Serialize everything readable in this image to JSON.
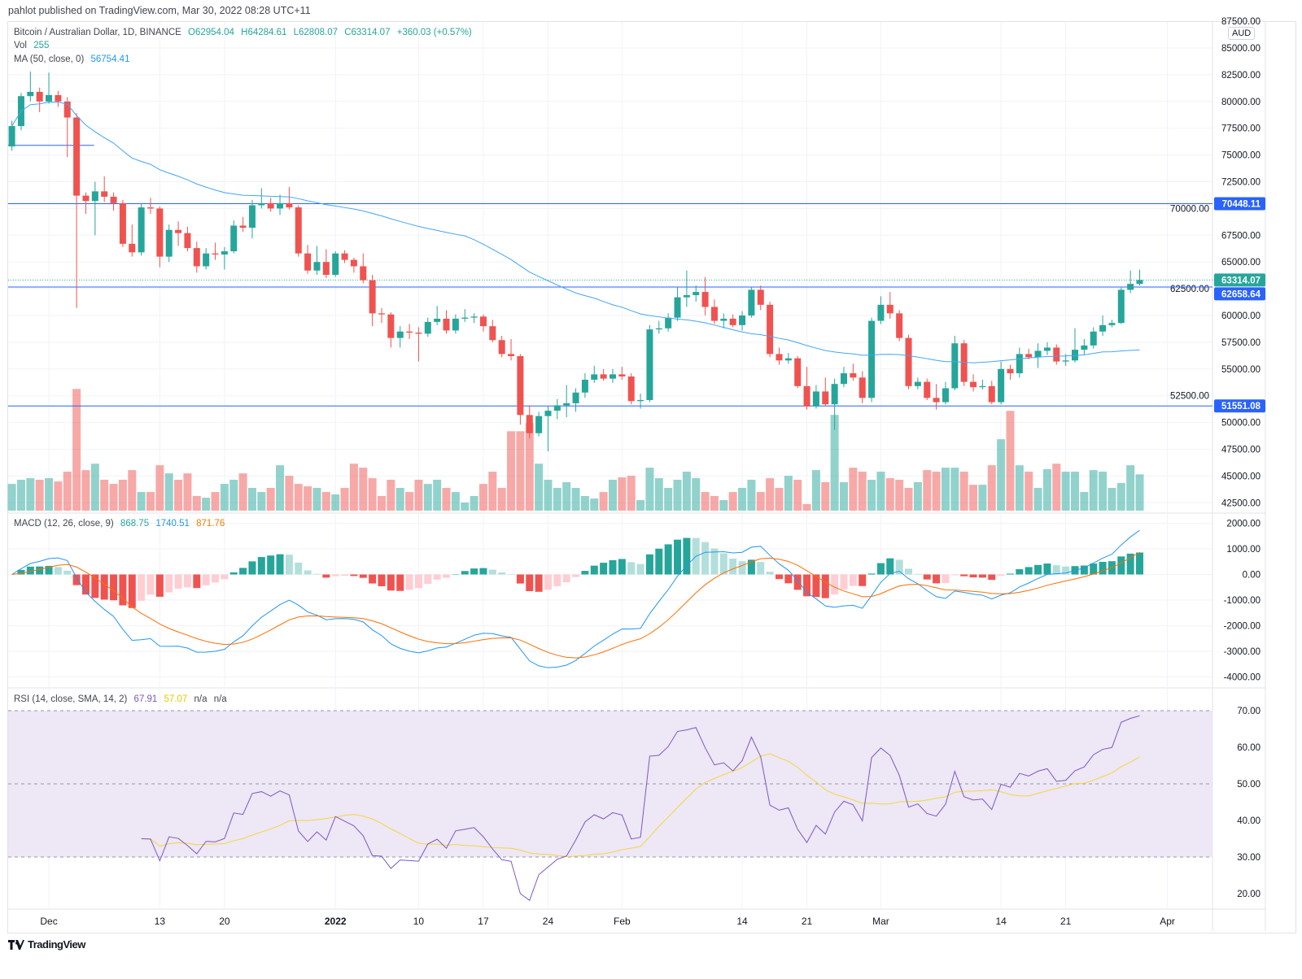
{
  "header": {
    "published": "pahlot published on TradingView.com, Mar 30, 2022 08:28 UTC+11"
  },
  "legend": {
    "symbol": "Bitcoin / Australian Dollar, 1D, BINANCE",
    "open": "O62954.04",
    "high": "H64284.61",
    "low": "L62808.07",
    "close": "C63314.07",
    "change": "+360.03 (+0.57%)",
    "vol_label": "Vol",
    "vol_value": "255",
    "ma_label": "MA (50, close, 0)",
    "ma_value": "56754.41",
    "macd_label": "MACD (12, 26, close, 9)",
    "macd_hist": "868.75",
    "macd_value": "1740.51",
    "macd_signal": "871.76",
    "rsi_label": "RSI (14, close, SMA, 14, 2)",
    "rsi_value": "67.91",
    "rsi_ma": "57.07",
    "rsi_na1": "n/a",
    "rsi_na2": "n/a"
  },
  "currency": "AUD",
  "colors": {
    "up": "#26a69a",
    "down": "#ef5350",
    "ma": "#42a5f5",
    "level": "#2962ff",
    "macd": "#2196f3",
    "signal": "#ff6d00",
    "rsi": "#7e57c2",
    "rsi_ma": "#f5d63d",
    "rsi_band": "#ede7f6"
  },
  "price_axis": [
    "87500.00",
    "85000.00",
    "82500.00",
    "80000.00",
    "77500.00",
    "75000.00",
    "72500.00",
    "70000.00",
    "67500.00",
    "65000.00",
    "62500.00",
    "60000.00",
    "57500.00",
    "55000.00",
    "52500.00",
    "50000.00",
    "47500.00",
    "45000.00",
    "42500.00"
  ],
  "macd_axis": [
    "2000.00",
    "1000.00",
    "0.00",
    "-1000.00",
    "-2000.00",
    "-3000.00",
    "-4000.00"
  ],
  "rsi_axis": [
    "70.00",
    "60.00",
    "50.00",
    "40.00",
    "30.00",
    "20.00"
  ],
  "levels": [
    {
      "price": 70448.11,
      "label": "70448.11"
    },
    {
      "price": 62658.64,
      "label": "62658.64"
    },
    {
      "price": 51551.08,
      "label": "51551.08"
    }
  ],
  "short_level": {
    "price": 75900,
    "from": "2021-11-27",
    "to": "2021-12-05"
  },
  "last_price": {
    "price": 63314.07,
    "label": "63314.07"
  },
  "time_axis": [
    {
      "label": "Dec",
      "date": "2021-12-01"
    },
    {
      "label": "13",
      "date": "2021-12-13"
    },
    {
      "label": "20",
      "date": "2021-12-20"
    },
    {
      "label": "2022",
      "date": "2022-01-01"
    },
    {
      "label": "10",
      "date": "2022-01-10"
    },
    {
      "label": "17",
      "date": "2022-01-17"
    },
    {
      "label": "24",
      "date": "2022-01-24"
    },
    {
      "label": "Feb",
      "date": "2022-02-01"
    },
    {
      "label": "14",
      "date": "2022-02-14"
    },
    {
      "label": "21",
      "date": "2022-02-21"
    },
    {
      "label": "Mar",
      "date": "2022-03-01"
    },
    {
      "label": "14",
      "date": "2022-03-14"
    },
    {
      "label": "21",
      "date": "2022-03-21"
    },
    {
      "label": "Apr",
      "date": "2022-04-01"
    }
  ],
  "footer": {
    "brand": "TradingView"
  },
  "chart_data": {
    "type": "candlestick",
    "indicators": [
      "Volume",
      "MA 50",
      "MACD (12,26,9)",
      "RSI (14) with SMA 14"
    ],
    "columns": [
      "date",
      "open",
      "high",
      "low",
      "close",
      "volume"
    ],
    "candles": [
      [
        "2021-11-27",
        75800,
        78200,
        75400,
        77700,
        188
      ],
      [
        "2021-11-28",
        77700,
        80800,
        77300,
        80500,
        217
      ],
      [
        "2021-11-29",
        80500,
        82800,
        80000,
        80900,
        228
      ],
      [
        "2021-11-30",
        80900,
        81300,
        79000,
        80000,
        217
      ],
      [
        "2021-12-01",
        80000,
        82700,
        79800,
        80600,
        228
      ],
      [
        "2021-12-02",
        80600,
        81000,
        79500,
        80000,
        205
      ],
      [
        "2021-12-03",
        80000,
        80400,
        74800,
        78500,
        274
      ],
      [
        "2021-12-04",
        78500,
        78900,
        60700,
        71200,
        855
      ],
      [
        "2021-12-05",
        71200,
        71500,
        69500,
        70700,
        285
      ],
      [
        "2021-12-06",
        70700,
        72500,
        67500,
        71600,
        330
      ],
      [
        "2021-12-07",
        71600,
        73000,
        70600,
        71100,
        217
      ],
      [
        "2021-12-08",
        71100,
        71500,
        69800,
        70500,
        188
      ],
      [
        "2021-12-09",
        70500,
        70800,
        66400,
        66700,
        217
      ],
      [
        "2021-12-10",
        66700,
        68500,
        65500,
        65900,
        285
      ],
      [
        "2021-12-11",
        65900,
        70500,
        65600,
        70100,
        131
      ],
      [
        "2021-12-12",
        70100,
        71000,
        69500,
        70000,
        131
      ],
      [
        "2021-12-13",
        70000,
        70200,
        64500,
        65500,
        319
      ],
      [
        "2021-12-14",
        65500,
        68500,
        65000,
        68000,
        262
      ],
      [
        "2021-12-15",
        68000,
        68800,
        66500,
        67700,
        217
      ],
      [
        "2021-12-16",
        67700,
        68300,
        66000,
        66300,
        262
      ],
      [
        "2021-12-17",
        66300,
        66900,
        64000,
        64600,
        103
      ],
      [
        "2021-12-18",
        64600,
        66300,
        64300,
        65800,
        91
      ],
      [
        "2021-12-19",
        65800,
        66800,
        65200,
        65700,
        131
      ],
      [
        "2021-12-20",
        65700,
        66400,
        64300,
        66000,
        188
      ],
      [
        "2021-12-21",
        66000,
        68900,
        65800,
        68400,
        217
      ],
      [
        "2021-12-22",
        68400,
        69200,
        67800,
        68200,
        262
      ],
      [
        "2021-12-23",
        68200,
        70800,
        67200,
        70300,
        160
      ],
      [
        "2021-12-24",
        70300,
        71900,
        70000,
        70500,
        131
      ],
      [
        "2021-12-25",
        70500,
        71000,
        69700,
        70000,
        160
      ],
      [
        "2021-12-26",
        70000,
        71300,
        69400,
        70500,
        319
      ],
      [
        "2021-12-27",
        70500,
        72000,
        69900,
        70100,
        245
      ],
      [
        "2021-12-28",
        70100,
        70300,
        65500,
        65800,
        188
      ],
      [
        "2021-12-29",
        65800,
        66600,
        63900,
        64200,
        171
      ],
      [
        "2021-12-30",
        64200,
        66500,
        63800,
        65000,
        160
      ],
      [
        "2021-12-31",
        65000,
        66200,
        63500,
        63800,
        131
      ],
      [
        "2022-01-01",
        63800,
        66000,
        63600,
        65800,
        114
      ],
      [
        "2022-01-02",
        65800,
        66100,
        64900,
        65200,
        160
      ],
      [
        "2022-01-03",
        65200,
        65400,
        64000,
        64600,
        330
      ],
      [
        "2022-01-04",
        64600,
        65800,
        63000,
        63300,
        302
      ],
      [
        "2022-01-05",
        63300,
        63800,
        59000,
        60200,
        228
      ],
      [
        "2022-01-06",
        60200,
        60700,
        59300,
        60100,
        103
      ],
      [
        "2022-01-07",
        60100,
        60300,
        57000,
        57900,
        217
      ],
      [
        "2022-01-08",
        57900,
        59000,
        57000,
        58500,
        160
      ],
      [
        "2022-01-09",
        58500,
        59200,
        57800,
        58400,
        131
      ],
      [
        "2022-01-10",
        58400,
        58900,
        55700,
        58300,
        217
      ],
      [
        "2022-01-11",
        58300,
        59800,
        58000,
        59400,
        188
      ],
      [
        "2022-01-12",
        59400,
        60900,
        59100,
        59700,
        217
      ],
      [
        "2022-01-13",
        59700,
        60500,
        58300,
        58600,
        160
      ],
      [
        "2022-01-14",
        58600,
        60100,
        58300,
        59700,
        131
      ],
      [
        "2022-01-15",
        59700,
        60600,
        59400,
        59800,
        57
      ],
      [
        "2022-01-16",
        59800,
        60200,
        59300,
        59900,
        103
      ],
      [
        "2022-01-17",
        59900,
        60100,
        58500,
        59000,
        188
      ],
      [
        "2022-01-18",
        59000,
        59600,
        57500,
        57700,
        274
      ],
      [
        "2022-01-19",
        57700,
        58100,
        56100,
        56400,
        160
      ],
      [
        "2022-01-20",
        56400,
        57800,
        55800,
        56200,
        558
      ],
      [
        "2022-01-21",
        56200,
        56400,
        49800,
        50700,
        558
      ],
      [
        "2022-01-22",
        50700,
        51600,
        48500,
        49000,
        616
      ],
      [
        "2022-01-23",
        49000,
        51000,
        48700,
        50600,
        330
      ],
      [
        "2022-01-24",
        50600,
        51500,
        47300,
        51100,
        217
      ],
      [
        "2022-01-25",
        51100,
        52200,
        50300,
        51600,
        160
      ],
      [
        "2022-01-26",
        51600,
        53500,
        50500,
        51800,
        200
      ],
      [
        "2022-01-27",
        51800,
        53200,
        51000,
        52800,
        160
      ],
      [
        "2022-01-28",
        52800,
        54600,
        52300,
        54000,
        103
      ],
      [
        "2022-01-29",
        54000,
        55300,
        53700,
        54500,
        85
      ],
      [
        "2022-01-30",
        54500,
        55000,
        53900,
        54100,
        131
      ],
      [
        "2022-01-31",
        54100,
        55000,
        53700,
        54500,
        217
      ],
      [
        "2022-02-01",
        54500,
        55200,
        54000,
        54300,
        234
      ],
      [
        "2022-02-02",
        54300,
        54600,
        51700,
        52000,
        245
      ],
      [
        "2022-02-03",
        52000,
        52700,
        51300,
        52100,
        74
      ],
      [
        "2022-02-04",
        52100,
        59100,
        51900,
        58700,
        302
      ],
      [
        "2022-02-05",
        58700,
        59500,
        58300,
        58800,
        228
      ],
      [
        "2022-02-06",
        58800,
        60200,
        58500,
        59800,
        160
      ],
      [
        "2022-02-07",
        59800,
        62700,
        59500,
        61700,
        217
      ],
      [
        "2022-02-08",
        61700,
        64200,
        60800,
        61900,
        274
      ],
      [
        "2022-02-09",
        61900,
        62800,
        61300,
        62200,
        228
      ],
      [
        "2022-02-10",
        62200,
        63600,
        60000,
        60800,
        131
      ],
      [
        "2022-02-11",
        60800,
        61500,
        59200,
        59500,
        103
      ],
      [
        "2022-02-12",
        59500,
        60200,
        58800,
        59700,
        74
      ],
      [
        "2022-02-13",
        59700,
        60100,
        58900,
        59100,
        131
      ],
      [
        "2022-02-14",
        59100,
        60400,
        58600,
        60000,
        160
      ],
      [
        "2022-02-15",
        60000,
        62700,
        59800,
        62400,
        217
      ],
      [
        "2022-02-16",
        62400,
        62800,
        60500,
        61000,
        131
      ],
      [
        "2022-02-17",
        61000,
        61300,
        56100,
        56400,
        228
      ],
      [
        "2022-02-18",
        56400,
        57000,
        55400,
        55800,
        160
      ],
      [
        "2022-02-19",
        55800,
        56500,
        55500,
        56000,
        245
      ],
      [
        "2022-02-20",
        56000,
        56200,
        53200,
        53400,
        217
      ],
      [
        "2022-02-21",
        53400,
        55200,
        51200,
        51500,
        46
      ],
      [
        "2022-02-22",
        51500,
        53500,
        51300,
        52900,
        285
      ],
      [
        "2022-02-23",
        52900,
        54200,
        51600,
        51700,
        200
      ],
      [
        "2022-02-24",
        51700,
        54100,
        49300,
        53600,
        673
      ],
      [
        "2022-02-25",
        53600,
        55200,
        53300,
        54600,
        200
      ],
      [
        "2022-02-26",
        54600,
        55500,
        53900,
        54200,
        302
      ],
      [
        "2022-02-27",
        54200,
        54800,
        51800,
        52300,
        274
      ],
      [
        "2022-02-28",
        52300,
        59800,
        51900,
        59500,
        217
      ],
      [
        "2022-03-01",
        59500,
        61800,
        59200,
        61000,
        274
      ],
      [
        "2022-03-02",
        61000,
        62200,
        59700,
        60200,
        228
      ],
      [
        "2022-03-03",
        60200,
        60500,
        57600,
        57900,
        217
      ],
      [
        "2022-03-04",
        57900,
        58200,
        53100,
        53400,
        160
      ],
      [
        "2022-03-05",
        53400,
        54200,
        53100,
        53800,
        200
      ],
      [
        "2022-03-06",
        53800,
        54100,
        52100,
        52300,
        285
      ],
      [
        "2022-03-07",
        52300,
        53600,
        51200,
        51900,
        274
      ],
      [
        "2022-03-08",
        51900,
        53800,
        51700,
        53200,
        302
      ],
      [
        "2022-03-09",
        53200,
        58100,
        53000,
        57400,
        302
      ],
      [
        "2022-03-10",
        57400,
        57700,
        53400,
        53800,
        274
      ],
      [
        "2022-03-11",
        53800,
        54500,
        52900,
        53300,
        182
      ],
      [
        "2022-03-12",
        53300,
        54000,
        53100,
        53400,
        182
      ],
      [
        "2022-03-13",
        53400,
        53900,
        51700,
        51900,
        319
      ],
      [
        "2022-03-14",
        51900,
        55700,
        51700,
        55000,
        502
      ],
      [
        "2022-03-15",
        55000,
        55400,
        54000,
        54600,
        701
      ],
      [
        "2022-03-16",
        54600,
        57000,
        54200,
        56400,
        319
      ],
      [
        "2022-03-17",
        56400,
        56900,
        55900,
        56100,
        274
      ],
      [
        "2022-03-18",
        56100,
        57400,
        55100,
        56700,
        160
      ],
      [
        "2022-03-19",
        56700,
        57500,
        56300,
        57000,
        291
      ],
      [
        "2022-03-20",
        57000,
        57300,
        55400,
        55700,
        330
      ],
      [
        "2022-03-21",
        55700,
        56400,
        55300,
        55800,
        274
      ],
      [
        "2022-03-22",
        55800,
        58800,
        55600,
        56800,
        274
      ],
      [
        "2022-03-23",
        56800,
        57800,
        56300,
        57200,
        131
      ],
      [
        "2022-03-24",
        57200,
        58900,
        56900,
        58500,
        285
      ],
      [
        "2022-03-25",
        58500,
        60000,
        58100,
        59100,
        274
      ],
      [
        "2022-03-26",
        59100,
        59600,
        58900,
        59300,
        160
      ],
      [
        "2022-03-27",
        59300,
        62600,
        59200,
        62400,
        194
      ],
      [
        "2022-03-28",
        62400,
        64200,
        62100,
        62954.04,
        319
      ],
      [
        "2022-03-29",
        62954.04,
        64284.61,
        62808.07,
        63314.07,
        255
      ]
    ]
  }
}
